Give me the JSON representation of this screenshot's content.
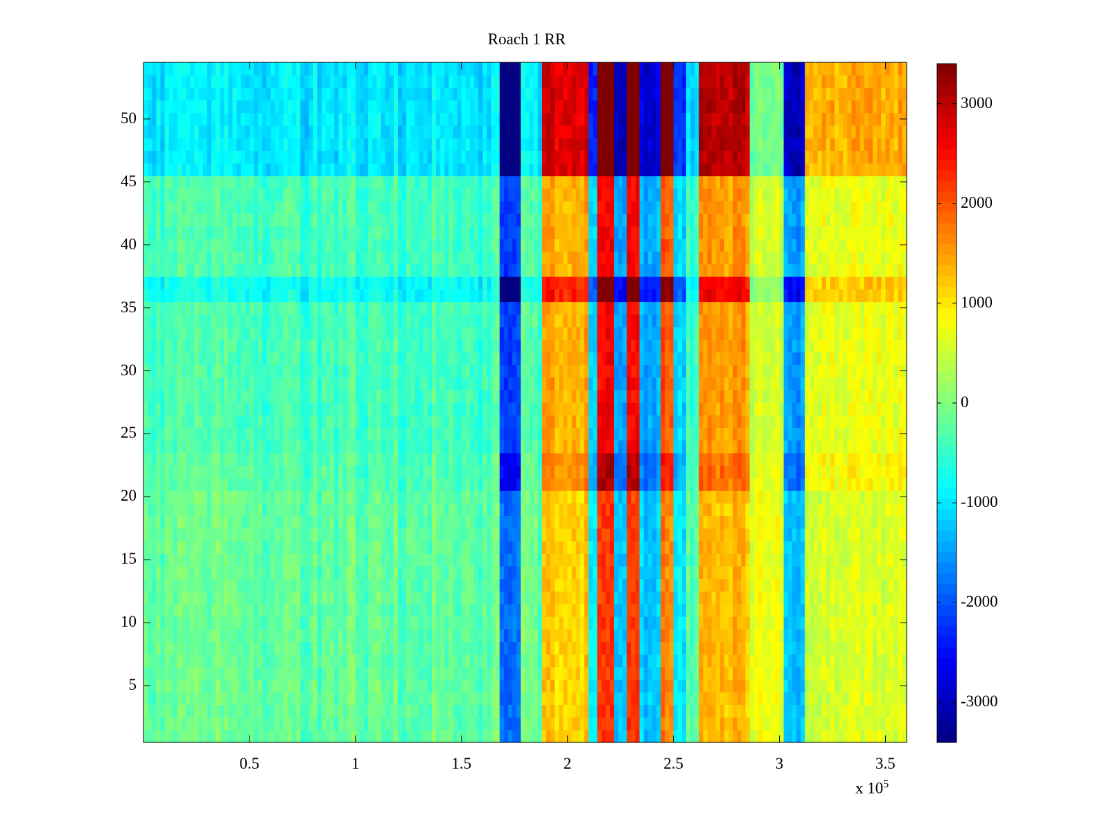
{
  "chart_data": {
    "type": "heatmap",
    "title": "Roach 1 RR",
    "x_axis": {
      "range": [
        0,
        360000
      ],
      "ticks": [
        50000,
        100000,
        150000,
        200000,
        250000,
        300000,
        350000
      ],
      "tick_labels": [
        "0.5",
        "1",
        "1.5",
        "2",
        "2.5",
        "3",
        "3.5"
      ],
      "multiplier_label": "x 10",
      "multiplier_exponent": "5"
    },
    "y_axis": {
      "range": [
        0.5,
        54.5
      ],
      "ticks": [
        5,
        10,
        15,
        20,
        25,
        30,
        35,
        40,
        45,
        50
      ],
      "tick_labels": [
        "5",
        "10",
        "15",
        "20",
        "25",
        "30",
        "35",
        "40",
        "45",
        "50"
      ]
    },
    "colorbar": {
      "colormap": "jet",
      "range": [
        -3400,
        3400
      ],
      "ticks": [
        3000,
        2000,
        1000,
        0,
        -1000,
        -2000,
        -3000
      ],
      "tick_labels": [
        "3000",
        "2000",
        "1000",
        "0",
        "-1000",
        "-2000",
        "-3000"
      ]
    },
    "column_bands": [
      {
        "x_start": 0,
        "x_end": 168000,
        "value": -300
      },
      {
        "x_start": 168000,
        "x_end": 178000,
        "value": -2200
      },
      {
        "x_start": 178000,
        "x_end": 188000,
        "value": -300
      },
      {
        "x_start": 188000,
        "x_end": 210000,
        "value": 1400
      },
      {
        "x_start": 210000,
        "x_end": 214000,
        "value": -1200
      },
      {
        "x_start": 214000,
        "x_end": 222000,
        "value": 2600
      },
      {
        "x_start": 222000,
        "x_end": 228000,
        "value": -1600
      },
      {
        "x_start": 228000,
        "x_end": 235000,
        "value": 2500
      },
      {
        "x_start": 235000,
        "x_end": 245000,
        "value": -1400
      },
      {
        "x_start": 245000,
        "x_end": 250000,
        "value": 2000
      },
      {
        "x_start": 250000,
        "x_end": 256000,
        "value": -1100
      },
      {
        "x_start": 256000,
        "x_end": 263000,
        "value": -300
      },
      {
        "x_start": 263000,
        "x_end": 287000,
        "value": 1500
      },
      {
        "x_start": 287000,
        "x_end": 303000,
        "value": 600
      },
      {
        "x_start": 303000,
        "x_end": 313000,
        "value": -1500
      },
      {
        "x_start": 313000,
        "x_end": 360000,
        "value": 700
      }
    ],
    "row_bands": [
      {
        "y_start": 45.5,
        "y_end": 54.5,
        "scale": 2.0,
        "quiet_offset": -700
      },
      {
        "y_start": 35.5,
        "y_end": 37.5,
        "scale": 1.7,
        "quiet_offset": -500
      },
      {
        "y_start": 20.5,
        "y_end": 23.5,
        "scale": 1.2,
        "quiet_offset": 0
      },
      {
        "y_start": 0.5,
        "y_end": 20.5,
        "scale": 0.85,
        "quiet_offset": 100
      },
      {
        "y_start": 23.5,
        "y_end": 35.5,
        "scale": 1.0,
        "quiet_offset": -100
      },
      {
        "y_start": 37.5,
        "y_end": 45.5,
        "scale": 1.0,
        "quiet_offset": -100
      }
    ]
  }
}
